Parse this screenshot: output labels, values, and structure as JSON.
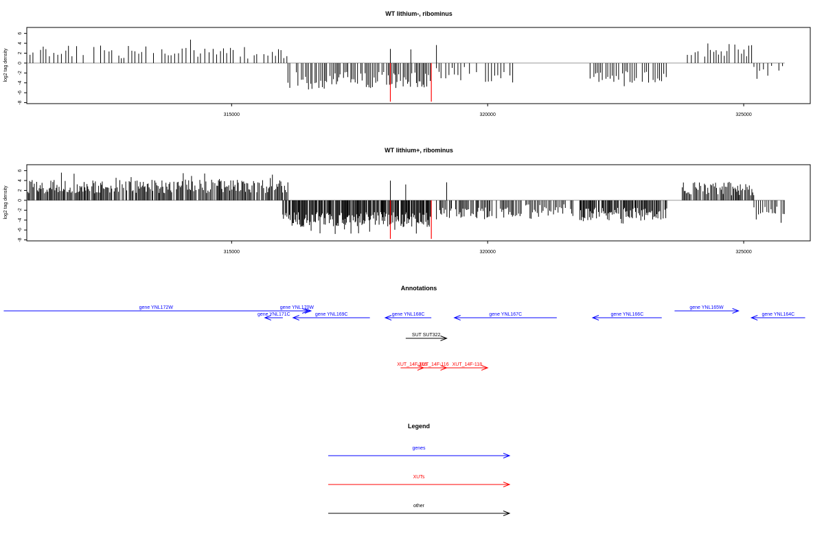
{
  "chart_data": [
    {
      "type": "bar",
      "title": "WT lithium-, ribominus",
      "ylabel": "log2 tag density",
      "xlim": [
        311000,
        326300
      ],
      "ylim": [
        -8.2,
        7.2
      ],
      "xticks": [
        315000,
        320000,
        325000
      ],
      "yticks": [
        6,
        4,
        2,
        0,
        -2,
        -4,
        -6,
        -8
      ],
      "grid": false,
      "baseline": {
        "from": 311000,
        "to": 325800
      },
      "blocks": [
        {
          "from": 311000,
          "to": 316100,
          "mean": 2.2,
          "spread": 1.3,
          "step": 70
        },
        {
          "from": 316100,
          "to": 318900,
          "mean": -3.6,
          "spread": 1.8,
          "step": 28
        },
        {
          "from": 319000,
          "to": 320500,
          "mean": -2.3,
          "spread": 1.5,
          "step": 55
        },
        {
          "from": 322000,
          "to": 323500,
          "mean": -2.9,
          "spread": 1.3,
          "step": 40
        },
        {
          "from": 323900,
          "to": 325200,
          "mean": 2.6,
          "spread": 1.3,
          "step": 60
        },
        {
          "from": 325200,
          "to": 325800,
          "mean": -1.4,
          "spread": 1.2,
          "step": 70
        }
      ],
      "highlight": {
        "x": [
          318100,
          318900
        ],
        "value": -7.8,
        "color": "#ff0000"
      },
      "upward_spikes": [
        318100,
        318500,
        319000
      ]
    },
    {
      "type": "bar",
      "title": "WT lithium+, ribominus",
      "ylabel": "log2 tag density",
      "xlim": [
        311000,
        326300
      ],
      "ylim": [
        -8.2,
        7.2
      ],
      "xticks": [
        315000,
        320000,
        325000
      ],
      "yticks": [
        6,
        4,
        2,
        0,
        -2,
        -4,
        -6,
        -8
      ],
      "grid": false,
      "baseline": {
        "from": 311000,
        "to": 325800
      },
      "blocks": [
        {
          "from": 311000,
          "to": 316100,
          "mean": 2.8,
          "spread": 1.4,
          "step": 20
        },
        {
          "from": 316000,
          "to": 318900,
          "mean": -3.9,
          "spread": 1.5,
          "step": 15
        },
        {
          "from": 319000,
          "to": 320500,
          "mean": -2.6,
          "spread": 1.3,
          "step": 22
        },
        {
          "from": 320500,
          "to": 321700,
          "mean": -2.0,
          "spread": 1.2,
          "step": 30
        },
        {
          "from": 321800,
          "to": 323500,
          "mean": -2.8,
          "spread": 1.3,
          "step": 18
        },
        {
          "from": 323800,
          "to": 325200,
          "mean": 2.4,
          "spread": 1.4,
          "step": 22
        },
        {
          "from": 325200,
          "to": 325800,
          "mean": -2.2,
          "spread": 1.2,
          "step": 35
        }
      ],
      "highlight": {
        "x": [
          318100,
          318900
        ],
        "value": -7.8,
        "color": "#ff0000"
      },
      "upward_spikes": [
        318100,
        318400,
        319200
      ]
    }
  ],
  "annotations": {
    "title": "Annotations",
    "genes_color": "#0000ff",
    "xuts_color": "#ff0000",
    "other_color": "#000000",
    "genes": [
      {
        "label": "gene YNL172W",
        "start": 310550,
        "end": 316500,
        "strand": "+",
        "row": 1
      },
      {
        "label": "gene YNL170W",
        "start": 316000,
        "end": 316550,
        "strand": "+",
        "row": 1
      },
      {
        "label": "gene YNL171C",
        "start": 315650,
        "end": 316000,
        "strand": "-",
        "row": 2
      },
      {
        "label": "gene YNL169C",
        "start": 316200,
        "end": 317700,
        "strand": "-",
        "row": 2
      },
      {
        "label": "gene YNL168C",
        "start": 318000,
        "end": 318900,
        "strand": "-",
        "row": 2
      },
      {
        "label": "gene YNL167C",
        "start": 319350,
        "end": 321350,
        "strand": "-",
        "row": 2
      },
      {
        "label": "gene YNL166C",
        "start": 322050,
        "end": 323400,
        "strand": "-",
        "row": 2
      },
      {
        "label": "gene YNL165W",
        "start": 323650,
        "end": 324900,
        "strand": "+",
        "row": 1
      },
      {
        "label": "gene YNL164C",
        "start": 325150,
        "end": 326200,
        "strand": "-",
        "row": 2
      }
    ],
    "other": [
      {
        "label": "SUT SUT322",
        "start": 318400,
        "end": 319200,
        "strand": "+"
      }
    ],
    "xuts": [
      {
        "label": "XUT_14F-105",
        "start": 318300,
        "end": 318750,
        "strand": "+"
      },
      {
        "label": "XUT_14F-116",
        "start": 318700,
        "end": 319200,
        "strand": "+"
      },
      {
        "label": "XUT_14F-118",
        "start": 319200,
        "end": 320000,
        "strand": "+"
      }
    ]
  },
  "legend": {
    "title": "Legend",
    "items": [
      {
        "label": "genes",
        "color": "#0000ff"
      },
      {
        "label": "XUTs",
        "color": "#ff0000"
      },
      {
        "label": "other",
        "color": "#000000"
      }
    ]
  }
}
